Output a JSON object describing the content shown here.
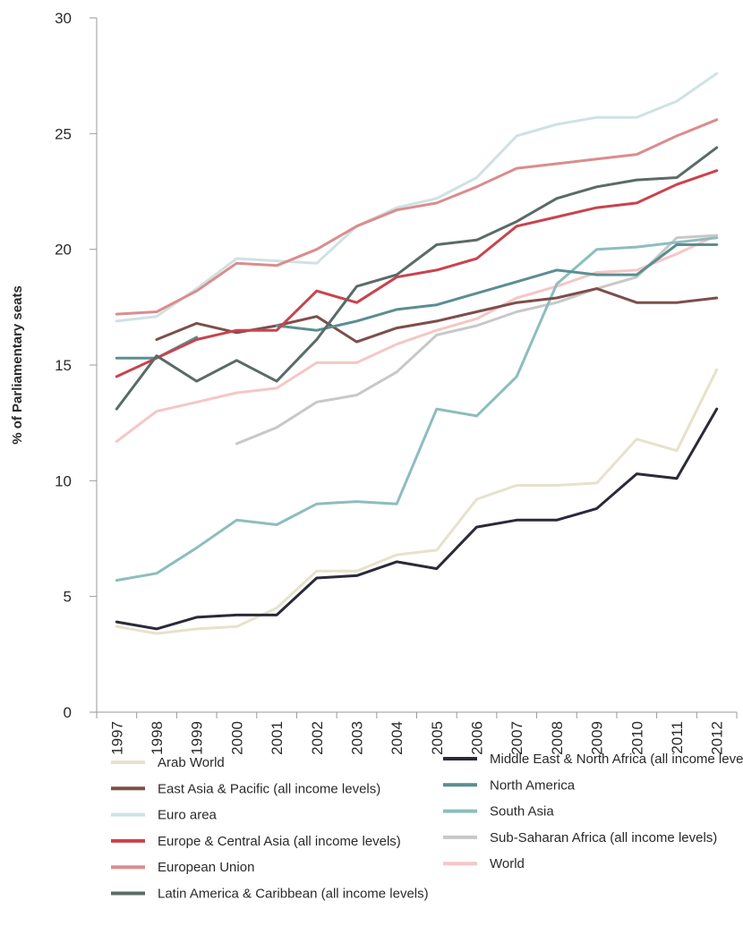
{
  "chart_data": {
    "type": "line",
    "title": "",
    "xlabel": "",
    "ylabel": "% of Parliamentary seats",
    "ylim": [
      0,
      30
    ],
    "yticks": [
      "0",
      "5",
      "10",
      "15",
      "20",
      "25",
      "30"
    ],
    "x": [
      "1997",
      "1998",
      "1999",
      "2000",
      "2001",
      "2002",
      "2003",
      "2004",
      "2005",
      "2006",
      "2007",
      "2008",
      "2009",
      "2010",
      "2011",
      "2012"
    ],
    "grid": false,
    "legend_position": "bottom",
    "series": [
      {
        "name": "Arab World",
        "color": "#e6e2cc",
        "values": [
          3.7,
          3.4,
          3.6,
          3.7,
          4.5,
          6.1,
          6.1,
          6.8,
          7.0,
          9.2,
          9.8,
          9.8,
          9.9,
          11.8,
          11.3,
          14.8
        ]
      },
      {
        "name": "East Asia & Pacific (all income levels)",
        "color": "#7d4e4b",
        "values": [
          null,
          16.1,
          16.8,
          16.4,
          16.7,
          17.1,
          16.0,
          16.6,
          16.9,
          17.3,
          17.7,
          17.9,
          18.3,
          17.7,
          17.7,
          17.9
        ]
      },
      {
        "name": "Euro area",
        "color": "#cfe2e3",
        "values": [
          16.9,
          17.1,
          18.3,
          19.6,
          19.5,
          19.4,
          21.0,
          21.8,
          22.2,
          23.1,
          24.9,
          25.4,
          25.7,
          25.7,
          26.4,
          27.6
        ]
      },
      {
        "name": "Europe & Central Asia (all income levels)",
        "color": "#c9434d",
        "values": [
          14.5,
          15.3,
          16.1,
          16.5,
          16.5,
          18.2,
          17.7,
          18.8,
          19.1,
          19.6,
          21.0,
          21.4,
          21.8,
          22.0,
          22.8,
          23.4
        ]
      },
      {
        "name": "European Union",
        "color": "#dc8c8c",
        "values": [
          17.2,
          17.3,
          18.2,
          19.4,
          19.3,
          20.0,
          21.0,
          21.7,
          22.0,
          22.7,
          23.5,
          23.7,
          23.9,
          24.1,
          24.9,
          25.6
        ]
      },
      {
        "name": "Latin America & Caribbean (all income levels)",
        "color": "#5a6b68",
        "values": [
          13.1,
          15.4,
          14.3,
          15.2,
          14.3,
          16.1,
          18.4,
          18.9,
          20.2,
          20.4,
          21.2,
          22.2,
          22.7,
          23.0,
          23.1,
          24.4
        ]
      },
      {
        "name": "Middle East & North Africa (all income levels)",
        "color": "#2a2a3a",
        "values": [
          3.9,
          3.6,
          4.1,
          4.2,
          4.2,
          5.8,
          5.9,
          6.5,
          6.2,
          8.0,
          8.3,
          8.3,
          8.8,
          10.3,
          10.1,
          13.1
        ]
      },
      {
        "name": "North America",
        "color": "#5b8e92",
        "values": [
          15.3,
          15.3,
          16.2,
          null,
          16.7,
          16.5,
          16.9,
          17.4,
          17.6,
          18.1,
          18.6,
          19.1,
          18.9,
          18.9,
          20.2,
          20.2
        ]
      },
      {
        "name": "South Asia",
        "color": "#8dbdbe",
        "values": [
          5.7,
          6.0,
          7.1,
          8.3,
          8.1,
          9.0,
          9.1,
          9.0,
          13.1,
          12.8,
          14.5,
          18.5,
          20.0,
          20.1,
          20.3,
          20.5
        ]
      },
      {
        "name": "Sub-Saharan Africa (all income levels)",
        "color": "#c8c8c8",
        "values": [
          null,
          null,
          null,
          11.6,
          12.3,
          13.4,
          13.7,
          14.7,
          16.3,
          16.7,
          17.3,
          17.7,
          18.3,
          18.8,
          20.5,
          20.6
        ]
      },
      {
        "name": "World",
        "color": "#f4c7c5",
        "values": [
          11.7,
          13.0,
          13.4,
          13.8,
          14.0,
          15.1,
          15.1,
          15.9,
          16.5,
          17.0,
          17.9,
          18.4,
          19.0,
          19.1,
          19.8,
          20.6
        ]
      }
    ]
  }
}
